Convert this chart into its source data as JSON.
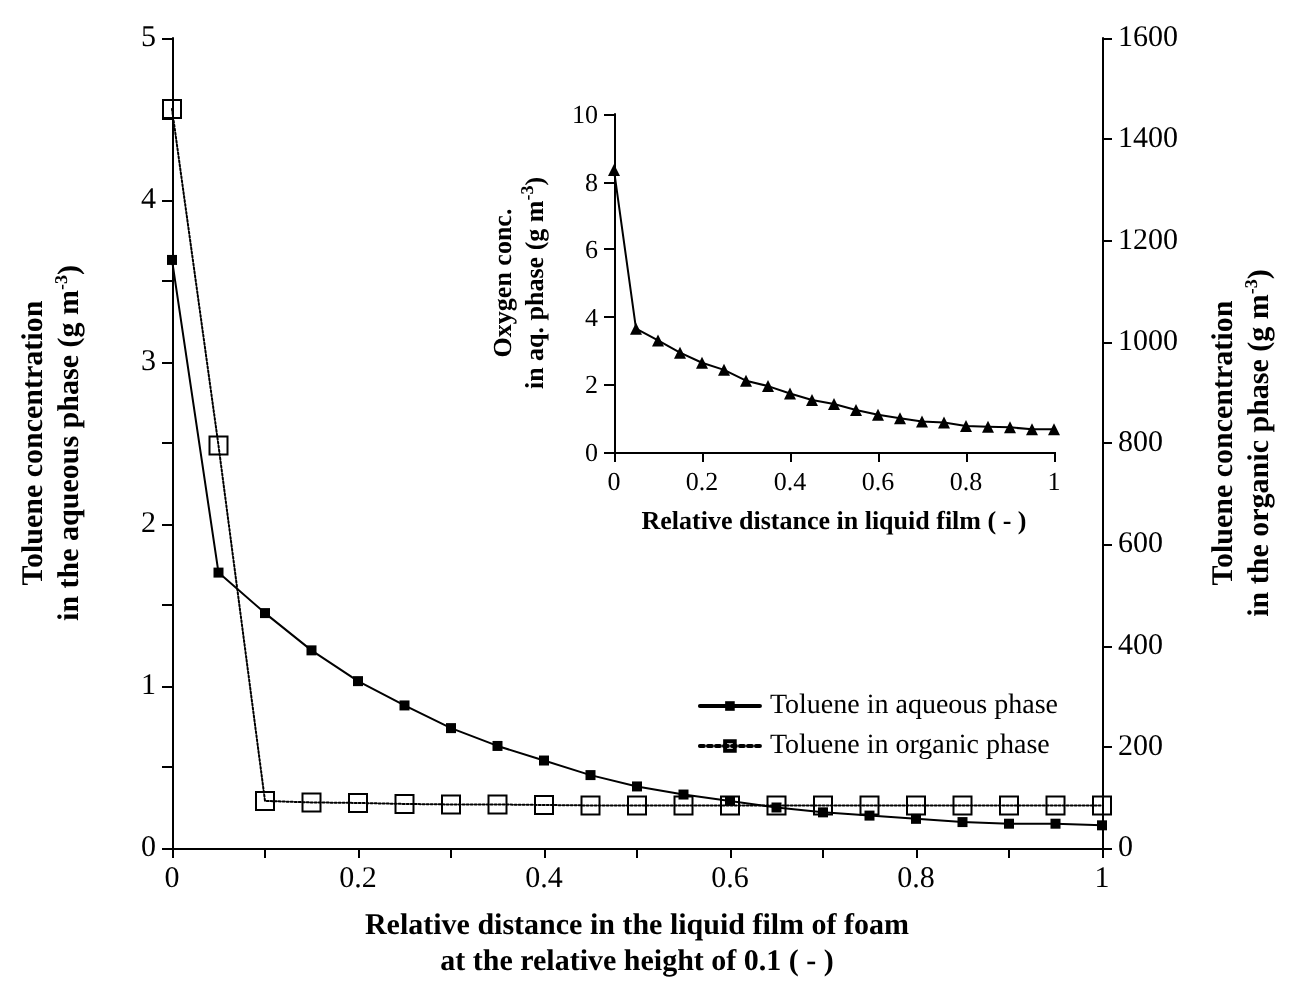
{
  "chart_data": [
    {
      "type": "line",
      "xlabel": "Relative distance in the liquid film of foam\nat the relative height of 0.1 ( - )",
      "ylabel": "Toluene concentration\nin the aqueous phase (g m$^{-3}$)",
      "y2label": "Toluene concentration\nin the organic phase (g m$^{-3}$)",
      "x": [
        0,
        0.05,
        0.1,
        0.15,
        0.2,
        0.25,
        0.3,
        0.35,
        0.4,
        0.45,
        0.5,
        0.55,
        0.6,
        0.65,
        0.7,
        0.75,
        0.8,
        0.85,
        0.9,
        0.95,
        1
      ],
      "series": [
        {
          "name": "Toluene in aqueous phase",
          "color": "#000000",
          "line_style": "solid",
          "values": [
            3.63,
            1.7,
            1.45,
            1.22,
            1.03,
            0.88,
            0.74,
            0.63,
            0.54,
            0.45,
            0.38,
            0.33,
            0.29,
            0.25,
            0.22,
            0.2,
            0.18,
            0.16,
            0.15,
            0.15,
            0.14
          ]
        },
        {
          "name": "Toluene in organic phase",
          "color": "#000000",
          "line_style": "dotted",
          "axis": "y2",
          "values": [
            1460,
            795,
            93,
            90,
            89,
            87,
            86,
            86,
            85,
            84,
            84,
            84,
            84,
            84,
            84,
            84,
            84,
            84,
            84,
            84,
            84
          ]
        }
      ],
      "xlim": [
        0,
        1
      ],
      "xticks": [
        0,
        {
          "value": 0.1,
          "label": null
        },
        0.2,
        {
          "value": 0.3,
          "label": null
        },
        0.4,
        {
          "value": 0.5,
          "label": null
        },
        0.6,
        {
          "value": 0.7,
          "label": null
        },
        0.8,
        {
          "value": 0.9,
          "label": null
        },
        1
      ],
      "ylim": [
        0,
        5
      ],
      "yticks": [
        0,
        {
          "value": 0.5,
          "label": null
        },
        1,
        {
          "value": 1.5,
          "label": null
        },
        2,
        {
          "value": 2.5,
          "label": null
        },
        3,
        {
          "value": 3.5,
          "label": null
        },
        4,
        {
          "value": 4.5,
          "label": null
        },
        5
      ],
      "y2lim": [
        0,
        1600
      ],
      "y2ticks": [
        0,
        200,
        400,
        600,
        800,
        1000,
        1200,
        1400,
        1600
      ],
      "marker": "square",
      "grid": false,
      "legend": "bottom right"
    },
    {
      "type": "line",
      "xlabel": "Relative distance in liquid film ( - )",
      "ylabel": "Oxygen conc.\nin aq. phase (g m$^{-3}$)",
      "x": [
        0,
        0.05,
        0.1,
        0.15,
        0.2,
        0.25,
        0.3,
        0.35,
        0.4,
        0.45,
        0.5,
        0.55,
        0.6,
        0.65,
        0.7,
        0.75,
        0.8,
        0.85,
        0.9,
        0.95,
        1
      ],
      "series": [
        {
          "color": "#000000",
          "values": [
            8.34,
            3.65,
            3.3,
            2.94,
            2.64,
            2.43,
            2.11,
            1.95,
            1.73,
            1.54,
            1.42,
            1.24,
            1.1,
            1.0,
            0.9,
            0.87,
            0.77,
            0.75,
            0.73,
            0.67,
            0.67
          ]
        }
      ],
      "xlim": [
        0,
        1
      ],
      "xticks": [
        0,
        0.2,
        0.4,
        0.6,
        0.8,
        1
      ],
      "ylim": [
        0,
        10
      ],
      "yticks": [
        0,
        2,
        4,
        6,
        8,
        10
      ],
      "marker": "triangle",
      "line_style": "solid",
      "grid": false,
      "legend": false
    }
  ]
}
